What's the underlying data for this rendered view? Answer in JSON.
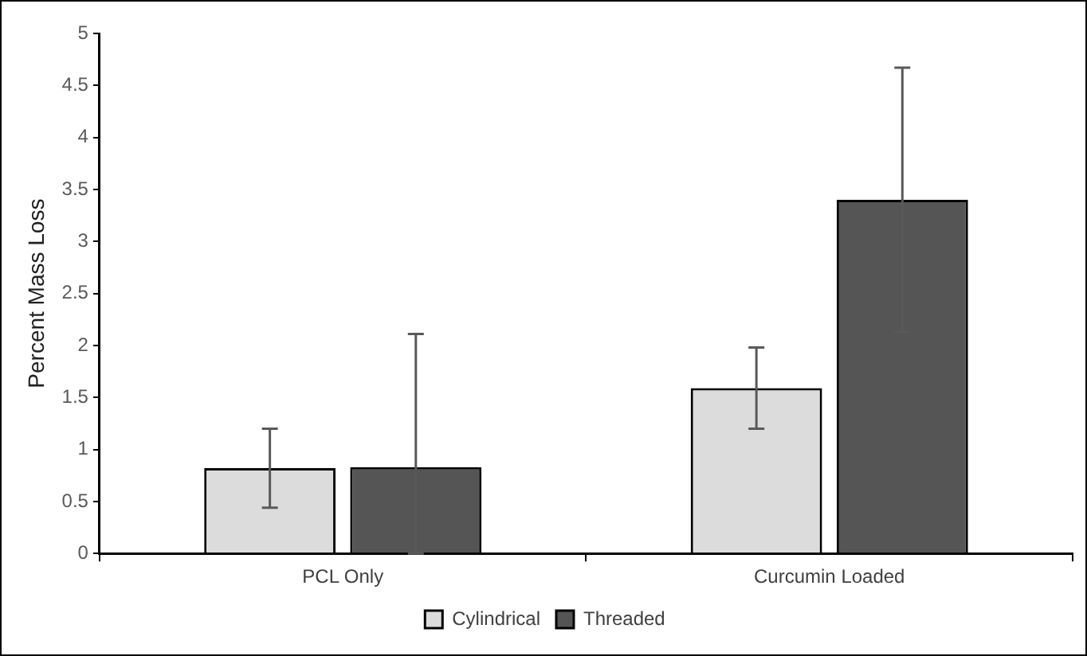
{
  "chart_data": {
    "type": "bar",
    "ylabel": "Percent Mass Loss",
    "categories": [
      "PCL Only",
      "Curcumin Loaded"
    ],
    "series": [
      {
        "name": "Cylindrical",
        "color": "#dcdcdc",
        "values": [
          0.82,
          1.59
        ],
        "errors": [
          0.38,
          0.39
        ]
      },
      {
        "name": "Threaded",
        "color": "#555555",
        "values": [
          0.83,
          3.4
        ],
        "errors": [
          [
            0,
            2.11
          ],
          1.27
        ]
      }
    ],
    "ylim": [
      0,
      5
    ],
    "yticks": [
      0,
      0.5,
      1,
      1.5,
      2,
      2.5,
      3,
      3.5,
      4,
      4.5,
      5
    ],
    "grid": false,
    "legend": "bottom"
  }
}
